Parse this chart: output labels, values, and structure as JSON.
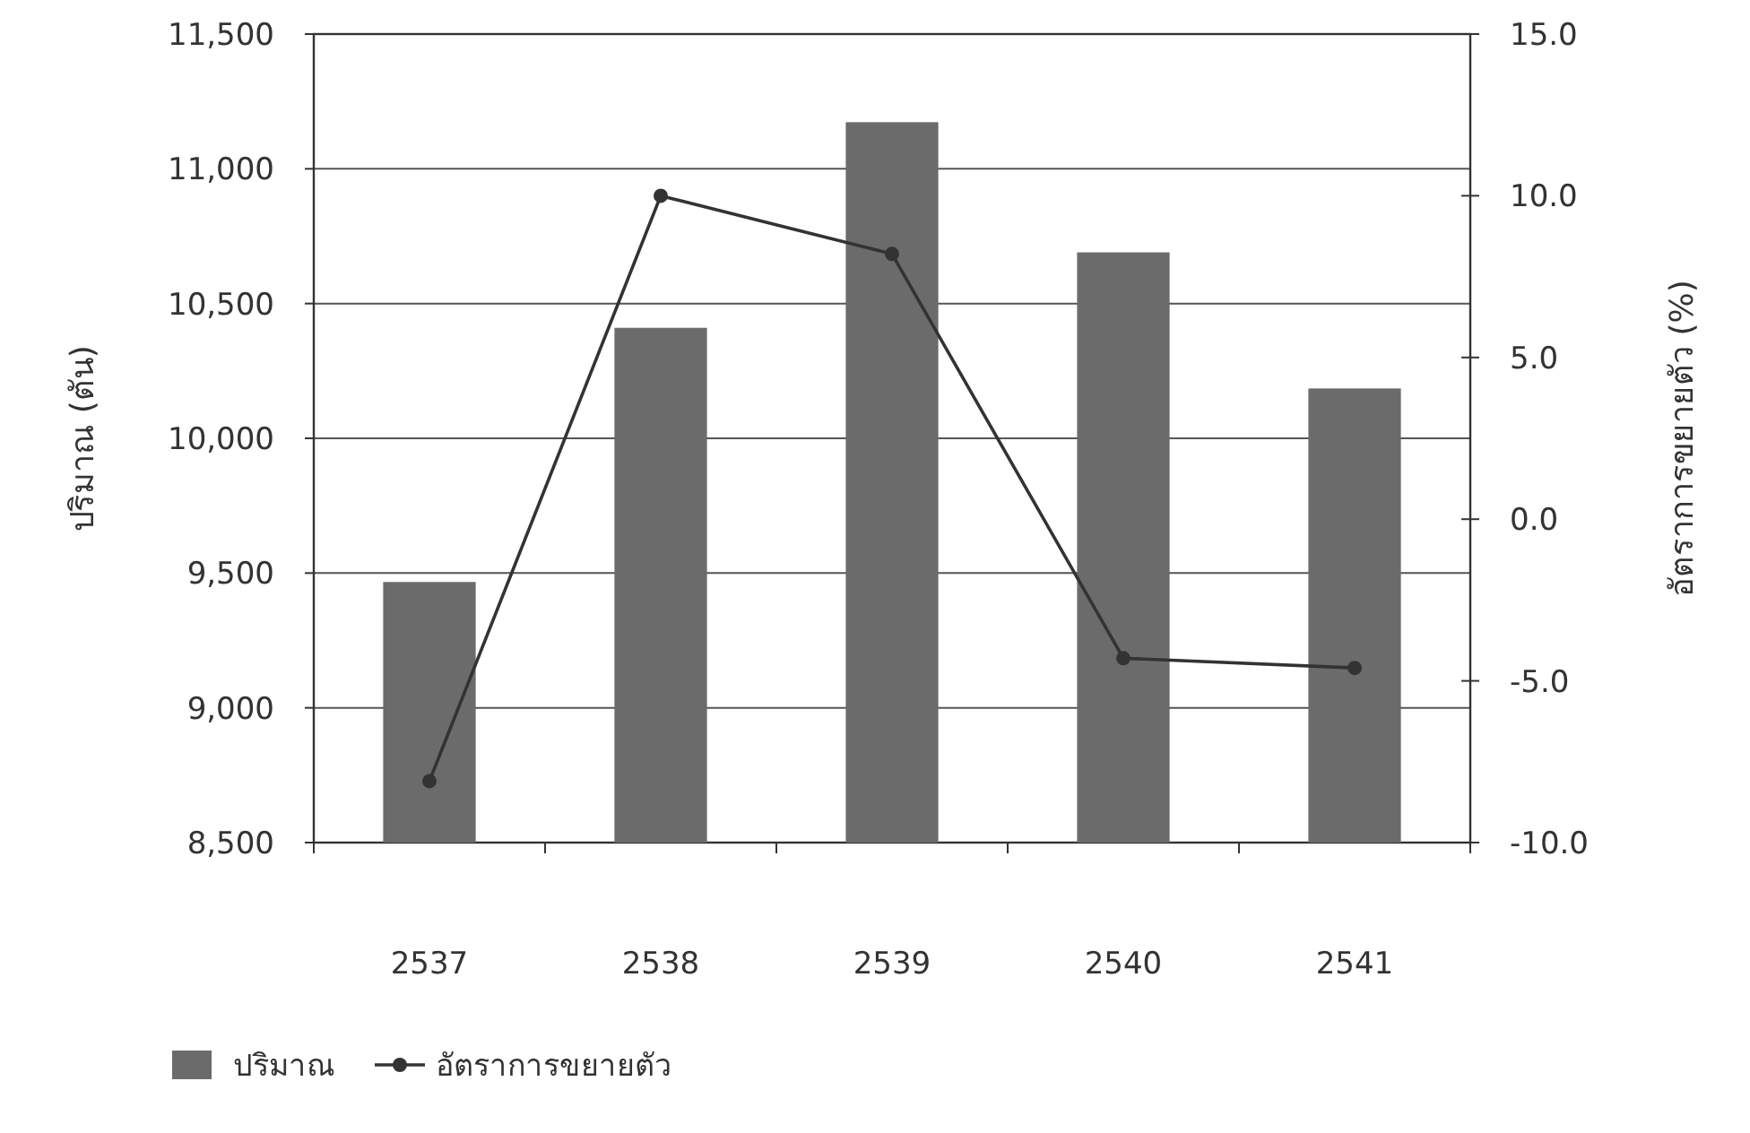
{
  "chart_data": {
    "type": "bar",
    "categories": [
      "2537",
      "2538",
      "2539",
      "2540",
      "2541"
    ],
    "series": [
      {
        "name": "ปริมาณ",
        "color": "#6b6b6b",
        "values": [
          9467,
          10410,
          11173,
          10690,
          10185
        ]
      },
      {
        "name": "อัตราการขยายตัว",
        "type": "line",
        "axis": "y2",
        "color": "#333333",
        "values": [
          -8.1,
          10.0,
          8.2,
          -4.3,
          -4.6
        ]
      }
    ],
    "ylabel": "ปริมาณ (ตัน)",
    "y2label": "อัตราการขยายตัว (%)",
    "ylim": [
      8500,
      11500
    ],
    "yticks": [
      {
        "value": 8500,
        "label": "8,500"
      },
      {
        "value": 9000,
        "label": "9,000"
      },
      {
        "value": 9500,
        "label": "9,500"
      },
      {
        "value": 10000,
        "label": "10,000"
      },
      {
        "value": 10500,
        "label": "10,500"
      },
      {
        "value": 11000,
        "label": "11,000"
      },
      {
        "value": 11500,
        "label": "11,500"
      }
    ],
    "y2lim": [
      -10,
      15
    ],
    "y2ticks": [
      {
        "value": -10,
        "label": "-10.0"
      },
      {
        "value": -5,
        "label": "-5.0"
      },
      {
        "value": 0,
        "label": "0.0"
      },
      {
        "value": 5,
        "label": "5.0"
      },
      {
        "value": 10,
        "label": "10.0"
      },
      {
        "value": 15,
        "label": "15.0"
      }
    ],
    "grid": "y",
    "legend": "bottom left",
    "marker": "circle"
  }
}
